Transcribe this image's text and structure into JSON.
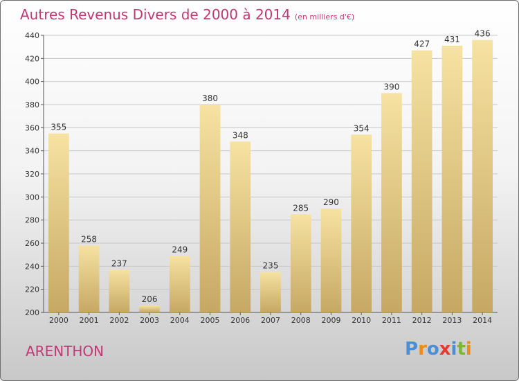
{
  "title": "Autres Revenus Divers de 2000 à 2014",
  "unit": "(en milliers d'€)",
  "place": "ARENTHON",
  "logo": {
    "text": "Proxiti",
    "letters": [
      {
        "ch": "P",
        "color": "#4a8fd6"
      },
      {
        "ch": "r",
        "color": "#f08a1c"
      },
      {
        "ch": "o",
        "color": "#4a8fd6"
      },
      {
        "ch": "x",
        "color": "#e8392f"
      },
      {
        "ch": "i",
        "color": "#4a8fd6"
      },
      {
        "ch": "t",
        "color": "#7ab82e"
      },
      {
        "ch": "i",
        "color": "#f08a1c"
      }
    ]
  },
  "colors": {
    "accent": "#c03873",
    "bar_top": "#f6e2a2",
    "bar_bottom": "#c6a863",
    "grid": "#c8c8c8"
  },
  "chart_data": {
    "type": "bar",
    "categories": [
      "2000",
      "2001",
      "2002",
      "2003",
      "2004",
      "2005",
      "2006",
      "2007",
      "2008",
      "2009",
      "2010",
      "2011",
      "2012",
      "2013",
      "2014"
    ],
    "values": [
      355,
      258,
      237,
      206,
      249,
      380,
      348,
      235,
      285,
      290,
      354,
      390,
      427,
      431,
      436
    ],
    "ylim": [
      200,
      440
    ],
    "yticks": [
      200,
      220,
      240,
      260,
      280,
      300,
      320,
      340,
      360,
      380,
      400,
      420,
      440
    ],
    "grid": true,
    "xlabel": "",
    "ylabel": ""
  }
}
